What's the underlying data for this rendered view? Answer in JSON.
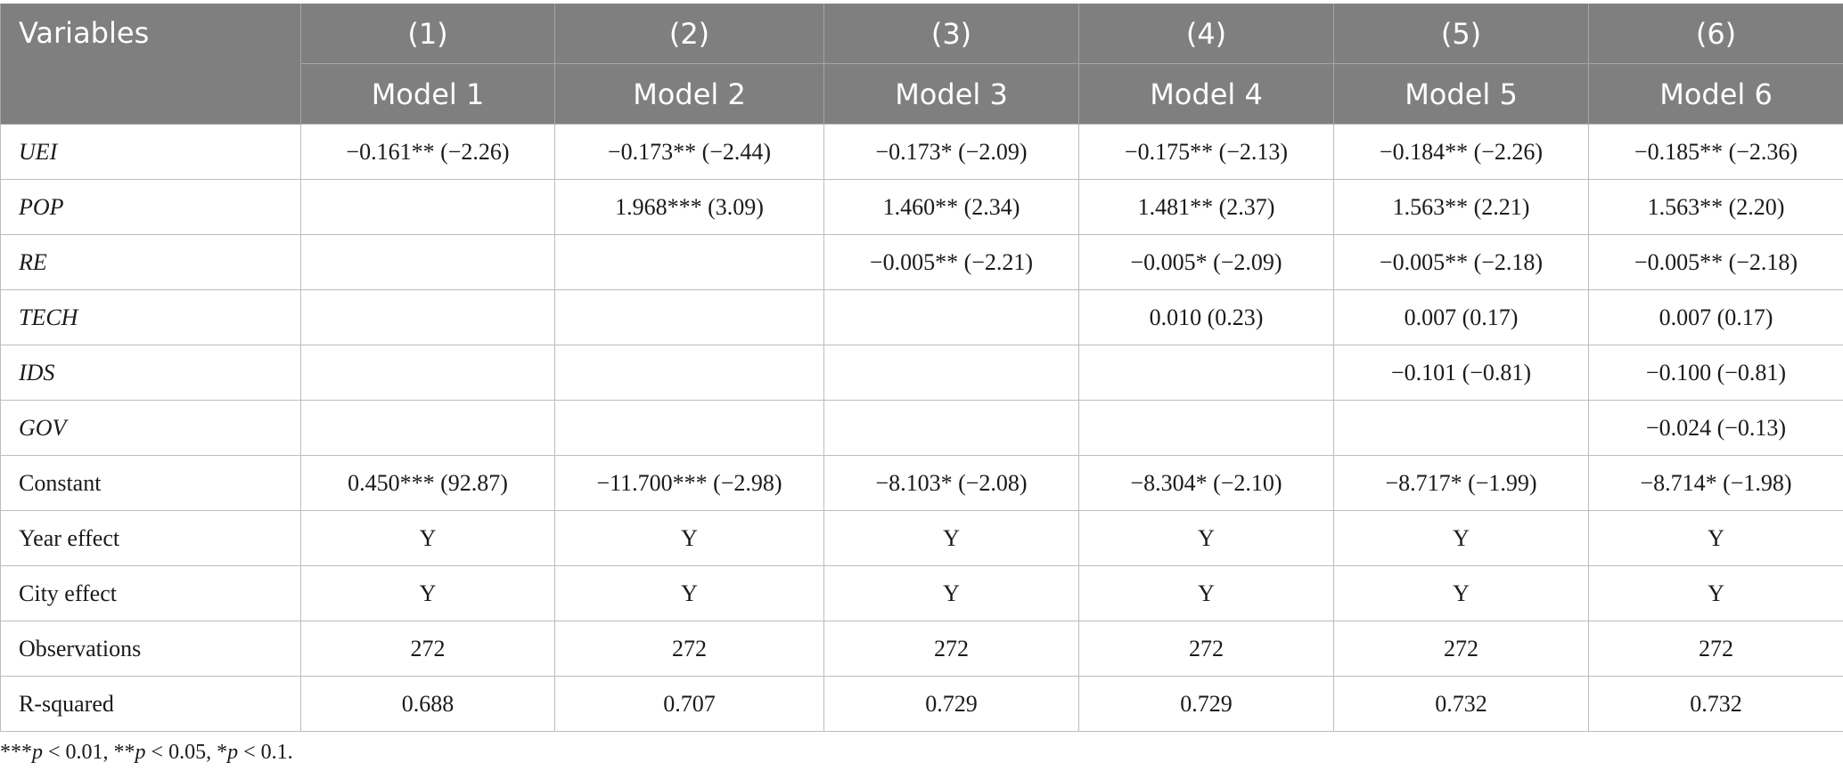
{
  "header": {
    "variables_label": "Variables",
    "numbers": [
      "(1)",
      "(2)",
      "(3)",
      "(4)",
      "(5)",
      "(6)"
    ],
    "models": [
      "Model 1",
      "Model 2",
      "Model 3",
      "Model 4",
      "Model 5",
      "Model 6"
    ]
  },
  "rows": [
    {
      "label": "UEI",
      "italic": true,
      "cells": [
        "−0.161** (−2.26)",
        "−0.173** (−2.44)",
        "−0.173* (−2.09)",
        "−0.175** (−2.13)",
        "−0.184** (−2.26)",
        "−0.185** (−2.36)"
      ]
    },
    {
      "label": "POP",
      "italic": true,
      "cells": [
        "",
        "1.968*** (3.09)",
        "1.460** (2.34)",
        "1.481** (2.37)",
        "1.563** (2.21)",
        "1.563** (2.20)"
      ]
    },
    {
      "label": "RE",
      "italic": true,
      "cells": [
        "",
        "",
        "−0.005** (−2.21)",
        "−0.005* (−2.09)",
        "−0.005** (−2.18)",
        "−0.005** (−2.18)"
      ]
    },
    {
      "label": "TECH",
      "italic": true,
      "cells": [
        "",
        "",
        "",
        "0.010 (0.23)",
        "0.007 (0.17)",
        "0.007 (0.17)"
      ]
    },
    {
      "label": "IDS",
      "italic": true,
      "cells": [
        "",
        "",
        "",
        "",
        "−0.101 (−0.81)",
        "−0.100 (−0.81)"
      ]
    },
    {
      "label": "GOV",
      "italic": true,
      "cells": [
        "",
        "",
        "",
        "",
        "",
        "−0.024 (−0.13)"
      ]
    },
    {
      "label": "Constant",
      "italic": false,
      "cells": [
        "0.450*** (92.87)",
        "−11.700*** (−2.98)",
        "−8.103* (−2.08)",
        "−8.304* (−2.10)",
        "−8.717* (−1.99)",
        "−8.714* (−1.98)"
      ]
    },
    {
      "label": "Year effect",
      "italic": false,
      "cells": [
        "Y",
        "Y",
        "Y",
        "Y",
        "Y",
        "Y"
      ]
    },
    {
      "label": "City effect",
      "italic": false,
      "cells": [
        "Y",
        "Y",
        "Y",
        "Y",
        "Y",
        "Y"
      ]
    },
    {
      "label": "Observations",
      "italic": false,
      "cells": [
        "272",
        "272",
        "272",
        "272",
        "272",
        "272"
      ]
    },
    {
      "label": "R-squared",
      "italic": false,
      "cells": [
        "0.688",
        "0.707",
        "0.729",
        "0.729",
        "0.732",
        "0.732"
      ]
    }
  ],
  "footnote": {
    "stars1": "***",
    "p1": "p",
    "text1": " < 0.01, ",
    "stars2": "**",
    "p2": "p",
    "text2": " < 0.05, ",
    "stars3": "*",
    "p3": "p",
    "text3": " < 0.1."
  },
  "colors": {
    "header_bg": "#7f7f7f",
    "header_text": "#ffffff",
    "grid": "#bdbdbd"
  }
}
